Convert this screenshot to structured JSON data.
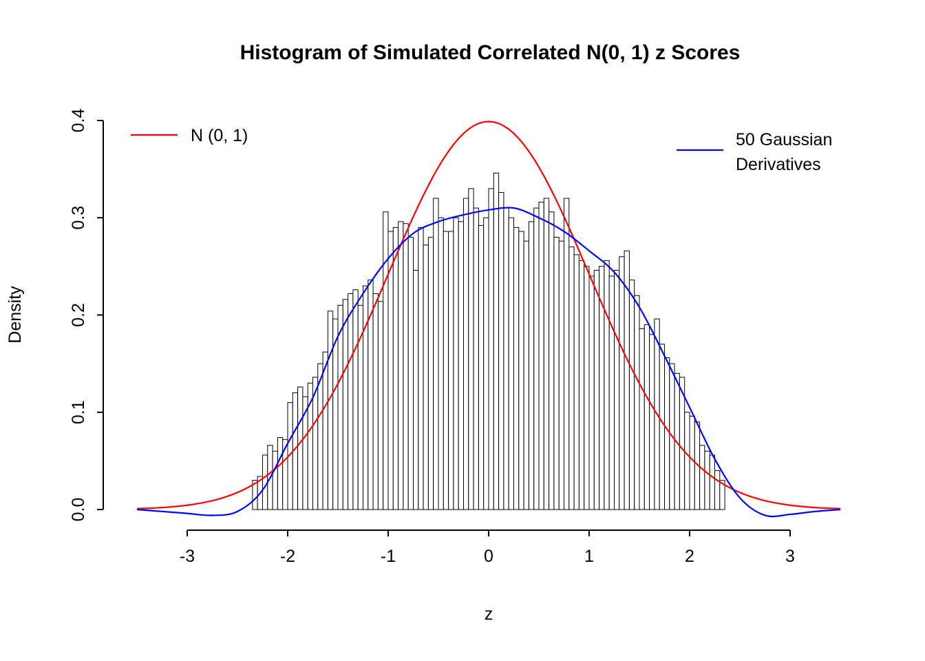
{
  "chart_data": {
    "type": "histogram",
    "title": "Histogram of Simulated Correlated N(0, 1) z Scores",
    "xlabel": "z",
    "ylabel": "Density",
    "xlim": [
      -3.5,
      3.5
    ],
    "ylim": [
      0,
      0.4
    ],
    "x_ticks": [
      -3,
      -2,
      -1,
      0,
      1,
      2,
      3
    ],
    "x_tick_labels": [
      "-3",
      "-2",
      "-1",
      "0",
      "1",
      "2",
      "3"
    ],
    "y_ticks": [
      0,
      0.1,
      0.2,
      0.3,
      0.4
    ],
    "y_tick_labels": [
      "0.0",
      "0.1",
      "0.2",
      "0.3",
      "0.4"
    ],
    "colors": {
      "normal_curve": "#FF0000",
      "derivative_curve": "#0000FF",
      "bar_stroke": "#000000",
      "bar_fill": "#FFFFFF",
      "axis": "#000000"
    },
    "legend": {
      "items": [
        {
          "label": "N (0, 1)",
          "color": "#FF0000"
        },
        {
          "label_lines": [
            "50 Gaussian",
            "Derivatives"
          ],
          "color": "#0000FF"
        }
      ]
    },
    "histogram": {
      "bin_start": -2.35,
      "bin_width": 0.05,
      "densities": [
        0.03,
        0.034,
        0.056,
        0.066,
        0.06,
        0.074,
        0.072,
        0.11,
        0.12,
        0.126,
        0.116,
        0.13,
        0.136,
        0.15,
        0.162,
        0.204,
        0.196,
        0.21,
        0.216,
        0.222,
        0.226,
        0.21,
        0.23,
        0.236,
        0.222,
        0.214,
        0.306,
        0.286,
        0.29,
        0.296,
        0.294,
        0.28,
        0.246,
        0.29,
        0.272,
        0.28,
        0.32,
        0.3,
        0.286,
        0.286,
        0.3,
        0.296,
        0.32,
        0.33,
        0.31,
        0.292,
        0.3,
        0.33,
        0.346,
        0.326,
        0.31,
        0.3,
        0.29,
        0.286,
        0.276,
        0.296,
        0.31,
        0.316,
        0.32,
        0.306,
        0.28,
        0.276,
        0.32,
        0.27,
        0.262,
        0.256,
        0.25,
        0.24,
        0.246,
        0.25,
        0.256,
        0.24,
        0.246,
        0.26,
        0.266,
        0.236,
        0.22,
        0.186,
        0.19,
        0.18,
        0.196,
        0.17,
        0.156,
        0.15,
        0.14,
        0.136,
        0.1,
        0.096,
        0.09,
        0.066,
        0.06,
        0.056,
        0.04,
        0.03
      ]
    },
    "curves": [
      {
        "name": "N (0, 1)",
        "type": "normal_pdf",
        "mean": 0,
        "sd": 1,
        "color": "#FF0000",
        "x_range": [
          -3.5,
          3.5
        ]
      },
      {
        "name": "50 Gaussian Derivatives",
        "type": "points",
        "color": "#0000FF",
        "x": [
          -3.5,
          -3.25,
          -3.0,
          -2.75,
          -2.5,
          -2.25,
          -2.0,
          -1.75,
          -1.5,
          -1.25,
          -1.0,
          -0.75,
          -0.5,
          -0.25,
          0,
          0.25,
          0.5,
          0.75,
          1.0,
          1.25,
          1.5,
          1.75,
          2.0,
          2.25,
          2.5,
          2.75,
          3.0,
          3.25,
          3.5
        ],
        "y": [
          0.0,
          -0.002,
          -0.004,
          -0.006,
          -0.002,
          0.02,
          0.068,
          0.115,
          0.178,
          0.222,
          0.258,
          0.284,
          0.296,
          0.303,
          0.308,
          0.31,
          0.3,
          0.286,
          0.266,
          0.244,
          0.208,
          0.158,
          0.105,
          0.052,
          0.012,
          -0.006,
          -0.005,
          -0.002,
          0.0
        ]
      }
    ]
  }
}
